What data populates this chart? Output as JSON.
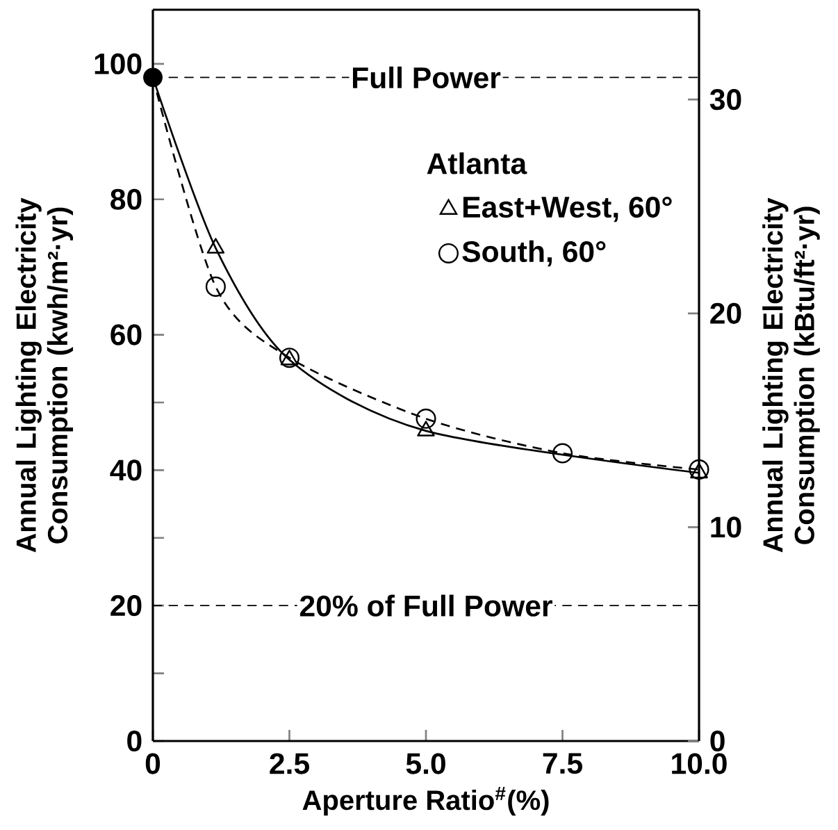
{
  "chart_data": {
    "type": "line",
    "xlabel": "Aperture Ratio$^{#}$(%)",
    "ylabel": "Annual Lighting Electricity Consumption (kwh/m²·yr)",
    "y2label": "Annual Lighting Electricity Consumption (kBtu/ft²·yr)",
    "legend_title": "Atlanta",
    "legend": "top right",
    "xlim": [
      0,
      10
    ],
    "xticks": [
      0,
      {
        "value": 2.5,
        "label": "2.5"
      },
      {
        "value": 5,
        "label": "5.0"
      },
      {
        "value": 7.5,
        "label": "7.5"
      },
      {
        "value": 10,
        "label": "10.0"
      }
    ],
    "ylim": [
      0,
      108
    ],
    "yticks": [
      0,
      {
        "value": 10,
        "label": null
      },
      20,
      {
        "value": 30,
        "label": null
      },
      40,
      {
        "value": 50,
        "label": null
      },
      60,
      80,
      100
    ],
    "y2lim": [
      0,
      34.2
    ],
    "y2ticks": [
      0,
      10,
      20,
      30
    ],
    "series": [
      {
        "name": "East+West, 60°",
        "color": "#000000",
        "marker": "triangle",
        "line_style": "solid",
        "x": [
          0,
          1.15,
          2.5,
          5,
          10
        ],
        "values": [
          98,
          72.8,
          56.3,
          45.8,
          39.6
        ]
      },
      {
        "name": "South, 60°",
        "color": "#000000",
        "marker": "circle",
        "line_style": "dashed",
        "x": [
          0,
          1.15,
          2.5,
          5,
          7.5,
          10
        ],
        "values": [
          98,
          67.1,
          56.6,
          47.6,
          42.5,
          40.1
        ]
      },
      {
        "type": "scatter",
        "color": "#000000",
        "marker": "circle",
        "x": [
          0
        ],
        "values": [
          98
        ]
      }
    ],
    "ref_lines": [
      {
        "axis": "y",
        "value": 98,
        "label": "Full Power",
        "color": "#000000",
        "line_style": "dashed"
      },
      {
        "axis": "y",
        "value": 20,
        "label": "20% of Full Power",
        "color": "#000000",
        "line_style": "dashed"
      }
    ]
  }
}
